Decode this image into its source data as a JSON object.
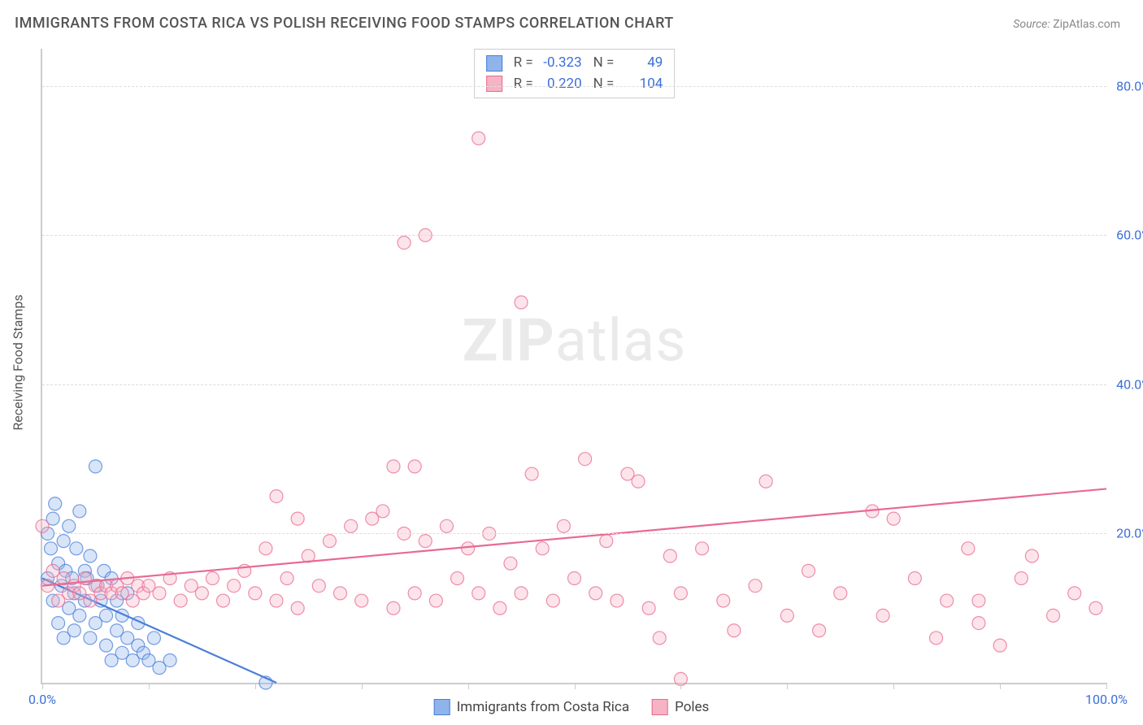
{
  "title": "IMMIGRANTS FROM COSTA RICA VS POLISH RECEIVING FOOD STAMPS CORRELATION CHART",
  "source_label": "Source:",
  "source_value": "ZipAtlas.com",
  "watermark_a": "ZIP",
  "watermark_b": "atlas",
  "y_axis_title": "Receiving Food Stamps",
  "chart": {
    "type": "scatter",
    "xlim": [
      0,
      100
    ],
    "ylim": [
      0,
      85
    ],
    "x_tick_positions": [
      0,
      10,
      20,
      30,
      40,
      50,
      60,
      70,
      80,
      90,
      100
    ],
    "x_tick_labels": {
      "0": "0.0%",
      "100": "100.0%"
    },
    "y_gridlines": [
      20,
      40,
      60,
      80
    ],
    "y_tick_labels": {
      "20": "20.0%",
      "40": "40.0%",
      "60": "60.0%",
      "80": "80.0%"
    },
    "background_color": "#ffffff",
    "grid_color": "#dddddd",
    "axis_color": "#cccccc",
    "marker_radius": 8,
    "marker_fill_opacity": 0.35,
    "marker_stroke_opacity": 0.75,
    "marker_stroke_width": 1.2,
    "trend_line_width": 2.2,
    "series": [
      {
        "id": "costa_rica",
        "label": "Immigrants from Costa Rica",
        "color_fill": "#8fb4ec",
        "color_stroke": "#4a7ed9",
        "R": "-0.323",
        "N": "49",
        "trend": {
          "x1": 0,
          "y1": 14,
          "x2": 22,
          "y2": 0
        },
        "points": [
          [
            0.5,
            20
          ],
          [
            0.5,
            14
          ],
          [
            0.8,
            18
          ],
          [
            1,
            22
          ],
          [
            1,
            11
          ],
          [
            1.2,
            24
          ],
          [
            1.5,
            16
          ],
          [
            1.5,
            8
          ],
          [
            1.8,
            13
          ],
          [
            2,
            19
          ],
          [
            2,
            6
          ],
          [
            2.2,
            15
          ],
          [
            2.5,
            10
          ],
          [
            2.5,
            21
          ],
          [
            2.8,
            14
          ],
          [
            3,
            12
          ],
          [
            3,
            7
          ],
          [
            3.2,
            18
          ],
          [
            3.5,
            23
          ],
          [
            3.5,
            9
          ],
          [
            4,
            15
          ],
          [
            4,
            11
          ],
          [
            4.2,
            14
          ],
          [
            4.5,
            6
          ],
          [
            4.5,
            17
          ],
          [
            5,
            29
          ],
          [
            5,
            8
          ],
          [
            5.2,
            13
          ],
          [
            5.5,
            11
          ],
          [
            5.8,
            15
          ],
          [
            6,
            5
          ],
          [
            6,
            9
          ],
          [
            6.5,
            14
          ],
          [
            6.5,
            3
          ],
          [
            7,
            7
          ],
          [
            7,
            11
          ],
          [
            7.5,
            4
          ],
          [
            7.5,
            9
          ],
          [
            8,
            6
          ],
          [
            8,
            12
          ],
          [
            8.5,
            3
          ],
          [
            9,
            8
          ],
          [
            9,
            5
          ],
          [
            9.5,
            4
          ],
          [
            10,
            3
          ],
          [
            10.5,
            6
          ],
          [
            11,
            2
          ],
          [
            12,
            3
          ],
          [
            21,
            0
          ]
        ]
      },
      {
        "id": "poles",
        "label": "Poles",
        "color_fill": "#f5b3c4",
        "color_stroke": "#e86a92",
        "R": "0.220",
        "N": "104",
        "trend": {
          "x1": 0,
          "y1": 13,
          "x2": 100,
          "y2": 26
        },
        "points": [
          [
            0,
            21
          ],
          [
            0.5,
            13
          ],
          [
            1,
            15
          ],
          [
            1.5,
            11
          ],
          [
            2,
            14
          ],
          [
            2.5,
            12
          ],
          [
            3,
            13
          ],
          [
            3.5,
            12
          ],
          [
            4,
            14
          ],
          [
            4.5,
            11
          ],
          [
            5,
            13
          ],
          [
            5.5,
            12
          ],
          [
            6,
            13
          ],
          [
            6.5,
            12
          ],
          [
            7,
            13
          ],
          [
            7.5,
            12
          ],
          [
            8,
            14
          ],
          [
            8.5,
            11
          ],
          [
            9,
            13
          ],
          [
            9.5,
            12
          ],
          [
            10,
            13
          ],
          [
            11,
            12
          ],
          [
            12,
            14
          ],
          [
            13,
            11
          ],
          [
            14,
            13
          ],
          [
            15,
            12
          ],
          [
            16,
            14
          ],
          [
            17,
            11
          ],
          [
            18,
            13
          ],
          [
            19,
            15
          ],
          [
            20,
            12
          ],
          [
            21,
            18
          ],
          [
            22,
            11
          ],
          [
            22,
            25
          ],
          [
            23,
            14
          ],
          [
            24,
            22
          ],
          [
            24,
            10
          ],
          [
            25,
            17
          ],
          [
            26,
            13
          ],
          [
            27,
            19
          ],
          [
            28,
            12
          ],
          [
            29,
            21
          ],
          [
            30,
            11
          ],
          [
            31,
            22
          ],
          [
            32,
            23
          ],
          [
            33,
            10
          ],
          [
            33,
            29
          ],
          [
            34,
            20
          ],
          [
            34,
            59
          ],
          [
            35,
            12
          ],
          [
            35,
            29
          ],
          [
            36,
            19
          ],
          [
            36,
            60
          ],
          [
            37,
            11
          ],
          [
            38,
            21
          ],
          [
            39,
            14
          ],
          [
            40,
            18
          ],
          [
            41,
            73
          ],
          [
            41,
            12
          ],
          [
            42,
            20
          ],
          [
            43,
            10
          ],
          [
            44,
            16
          ],
          [
            45,
            51
          ],
          [
            45,
            12
          ],
          [
            46,
            28
          ],
          [
            47,
            18
          ],
          [
            48,
            11
          ],
          [
            49,
            21
          ],
          [
            50,
            14
          ],
          [
            51,
            30
          ],
          [
            52,
            12
          ],
          [
            53,
            19
          ],
          [
            54,
            11
          ],
          [
            55,
            28
          ],
          [
            56,
            27
          ],
          [
            57,
            10
          ],
          [
            58,
            6
          ],
          [
            59,
            17
          ],
          [
            60,
            12
          ],
          [
            60,
            0.5
          ],
          [
            62,
            18
          ],
          [
            64,
            11
          ],
          [
            65,
            7
          ],
          [
            67,
            13
          ],
          [
            68,
            27
          ],
          [
            70,
            9
          ],
          [
            72,
            15
          ],
          [
            73,
            7
          ],
          [
            75,
            12
          ],
          [
            78,
            23
          ],
          [
            79,
            9
          ],
          [
            80,
            22
          ],
          [
            82,
            14
          ],
          [
            84,
            6
          ],
          [
            85,
            11
          ],
          [
            87,
            18
          ],
          [
            88,
            8
          ],
          [
            90,
            5
          ],
          [
            92,
            14
          ],
          [
            93,
            17
          ],
          [
            95,
            9
          ],
          [
            97,
            12
          ],
          [
            99,
            10
          ],
          [
            88,
            11
          ]
        ]
      }
    ]
  },
  "stats_legend": {
    "r_label": "R =",
    "n_label": "N ="
  }
}
